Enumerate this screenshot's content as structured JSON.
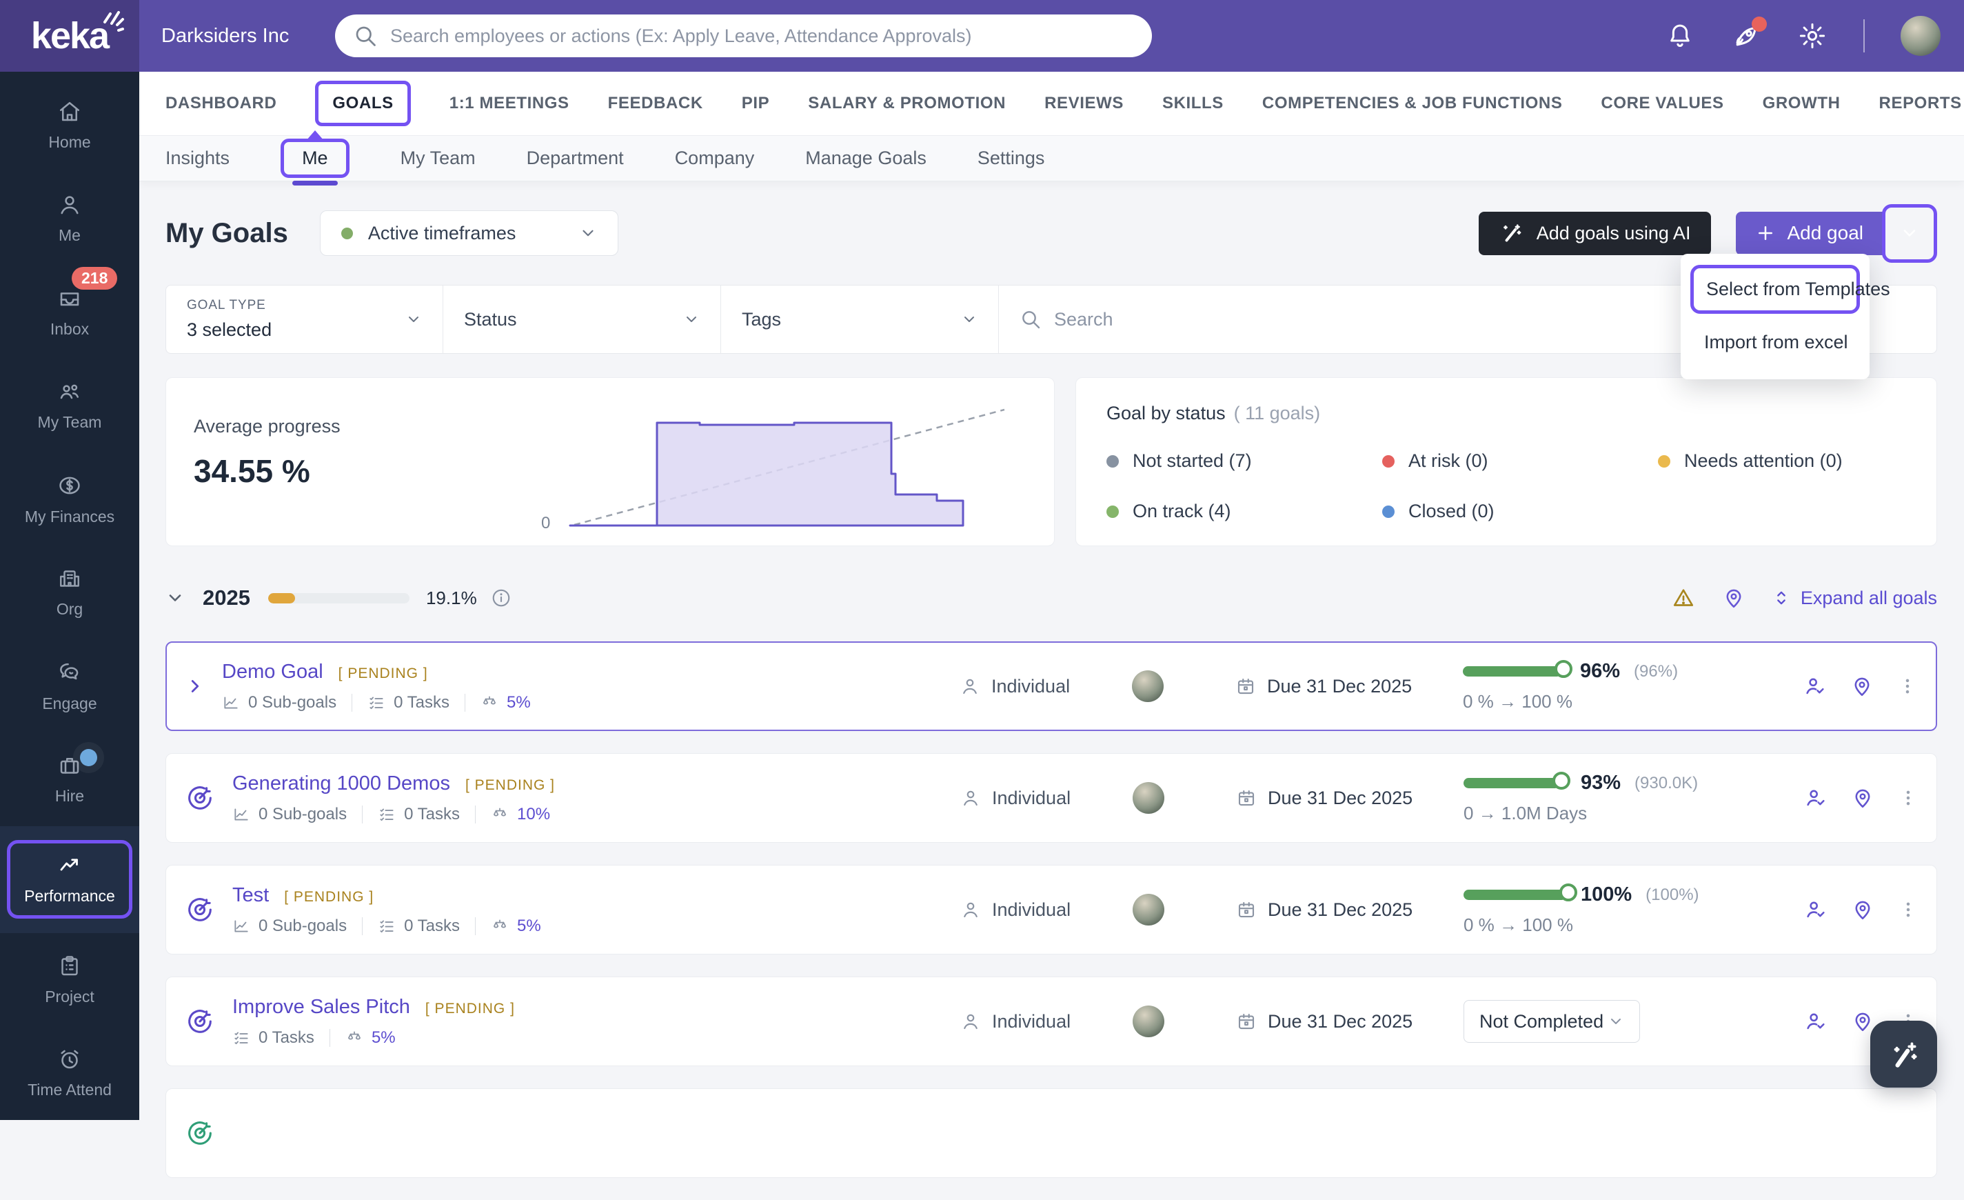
{
  "topbar": {
    "logo_text": "keka",
    "company_name": "Darksiders Inc",
    "search_placeholder": "Search employees or actions (Ex: Apply Leave, Attendance Approvals)"
  },
  "nav": {
    "tabs": [
      "DASHBOARD",
      "GOALS",
      "1:1 MEETINGS",
      "FEEDBACK",
      "PIP",
      "SALARY & PROMOTION",
      "REVIEWS",
      "SKILLS",
      "COMPETENCIES & JOB FUNCTIONS",
      "CORE VALUES",
      "GROWTH",
      "REPORTS"
    ],
    "active_tab": "GOALS"
  },
  "subnav": {
    "items": [
      "Insights",
      "Me",
      "My Team",
      "Department",
      "Company",
      "Manage Goals",
      "Settings"
    ],
    "active_item": "Me"
  },
  "sidebar": {
    "items": [
      {
        "label": "Home"
      },
      {
        "label": "Me"
      },
      {
        "label": "Inbox",
        "badge": "218"
      },
      {
        "label": "My Team"
      },
      {
        "label": "My Finances"
      },
      {
        "label": "Org"
      },
      {
        "label": "Engage"
      },
      {
        "label": "Hire"
      },
      {
        "label": "Performance",
        "active": true
      },
      {
        "label": "Project"
      },
      {
        "label": "Time Attend"
      }
    ]
  },
  "header": {
    "title": "My Goals",
    "timeframe_label": "Active timeframes",
    "ai_button_label": "Add goals using AI",
    "add_goal_label": "Add goal",
    "menu_items": [
      "Select from Templates",
      "Import from excel"
    ]
  },
  "filters": {
    "goal_type_label": "GOAL TYPE",
    "goal_type_value": "3 selected",
    "status_label": "Status",
    "tags_label": "Tags",
    "search_placeholder": "Search"
  },
  "summary": {
    "average_label": "Average progress",
    "average_value": "34.55 %",
    "axis_zero": "0",
    "chart_data": {
      "type": "area",
      "title": "Average progress step chart with dashed target line",
      "x_normalized": [
        0,
        0.19,
        0.19,
        0.29,
        0.29,
        0.52,
        0.52,
        0.72,
        0.72,
        0.73,
        0.73,
        0.82,
        0.82,
        0.88,
        0.88
      ],
      "y_percent": [
        0,
        0,
        93,
        93,
        91,
        91,
        93,
        93,
        47,
        47,
        28,
        28,
        22,
        22,
        0
      ],
      "target_line": {
        "style": "dashed",
        "from_percent": 0,
        "to_percent": 100
      },
      "ylim": [
        0,
        100
      ],
      "axis_labels": [
        "0"
      ]
    }
  },
  "status_card": {
    "title": "Goal by status",
    "subtitle": "( 11 goals)",
    "legend": [
      {
        "label": "Not started (7)",
        "color": "#8792a1"
      },
      {
        "label": "At risk (0)",
        "color": "#e5615e"
      },
      {
        "label": "Needs attention (0)",
        "color": "#eab94d"
      },
      {
        "label": "On track (4)",
        "color": "#85b56a"
      },
      {
        "label": "Closed (0)",
        "color": "#5b8fd4"
      }
    ]
  },
  "year_section": {
    "year": "2025",
    "progress_value": 19.1,
    "progress_label": "19.1%",
    "expand_label": "Expand all goals"
  },
  "goals": [
    {
      "title": "Demo Goal",
      "status": "[ PENDING ]",
      "subgoals": "0 Sub-goals",
      "tasks": "0 Tasks",
      "weight": "5%",
      "type": "Individual",
      "due": "Due 31 Dec 2025",
      "bar": 96,
      "pct": "96%",
      "pct_note": "(96%)",
      "range": "0 % → 100 %"
    },
    {
      "title": "Generating 1000 Demos",
      "status": "[ PENDING ]",
      "subgoals": "0 Sub-goals",
      "tasks": "0 Tasks",
      "weight": "10%",
      "type": "Individual",
      "due": "Due 31 Dec 2025",
      "bar": 93,
      "pct": "93%",
      "pct_note": "(930.0K)",
      "range": "0 → 1.0M Days"
    },
    {
      "title": "Test",
      "status": "[ PENDING ]",
      "subgoals": "0 Sub-goals",
      "tasks": "0 Tasks",
      "weight": "5%",
      "type": "Individual",
      "due": "Due 31 Dec 2025",
      "bar": 100,
      "pct": "100%",
      "pct_note": "(100%)",
      "range": "0 % → 100 %"
    },
    {
      "title": "Improve Sales Pitch",
      "status": "[ PENDING ]",
      "tasks": "0 Tasks",
      "weight": "5%",
      "type": "Individual",
      "due": "Due 31 Dec 2025",
      "dropdown_value": "Not Completed"
    }
  ],
  "colors": {
    "accent_purple": "#6a5acb",
    "annotation_purple": "#7452f2",
    "pending_gold": "#a9821e",
    "progress_green": "#57a05c",
    "year_amber": "#e0a63c",
    "sidebar_navy": "#1a2536",
    "topbar_purple": "#5a4ea6"
  }
}
